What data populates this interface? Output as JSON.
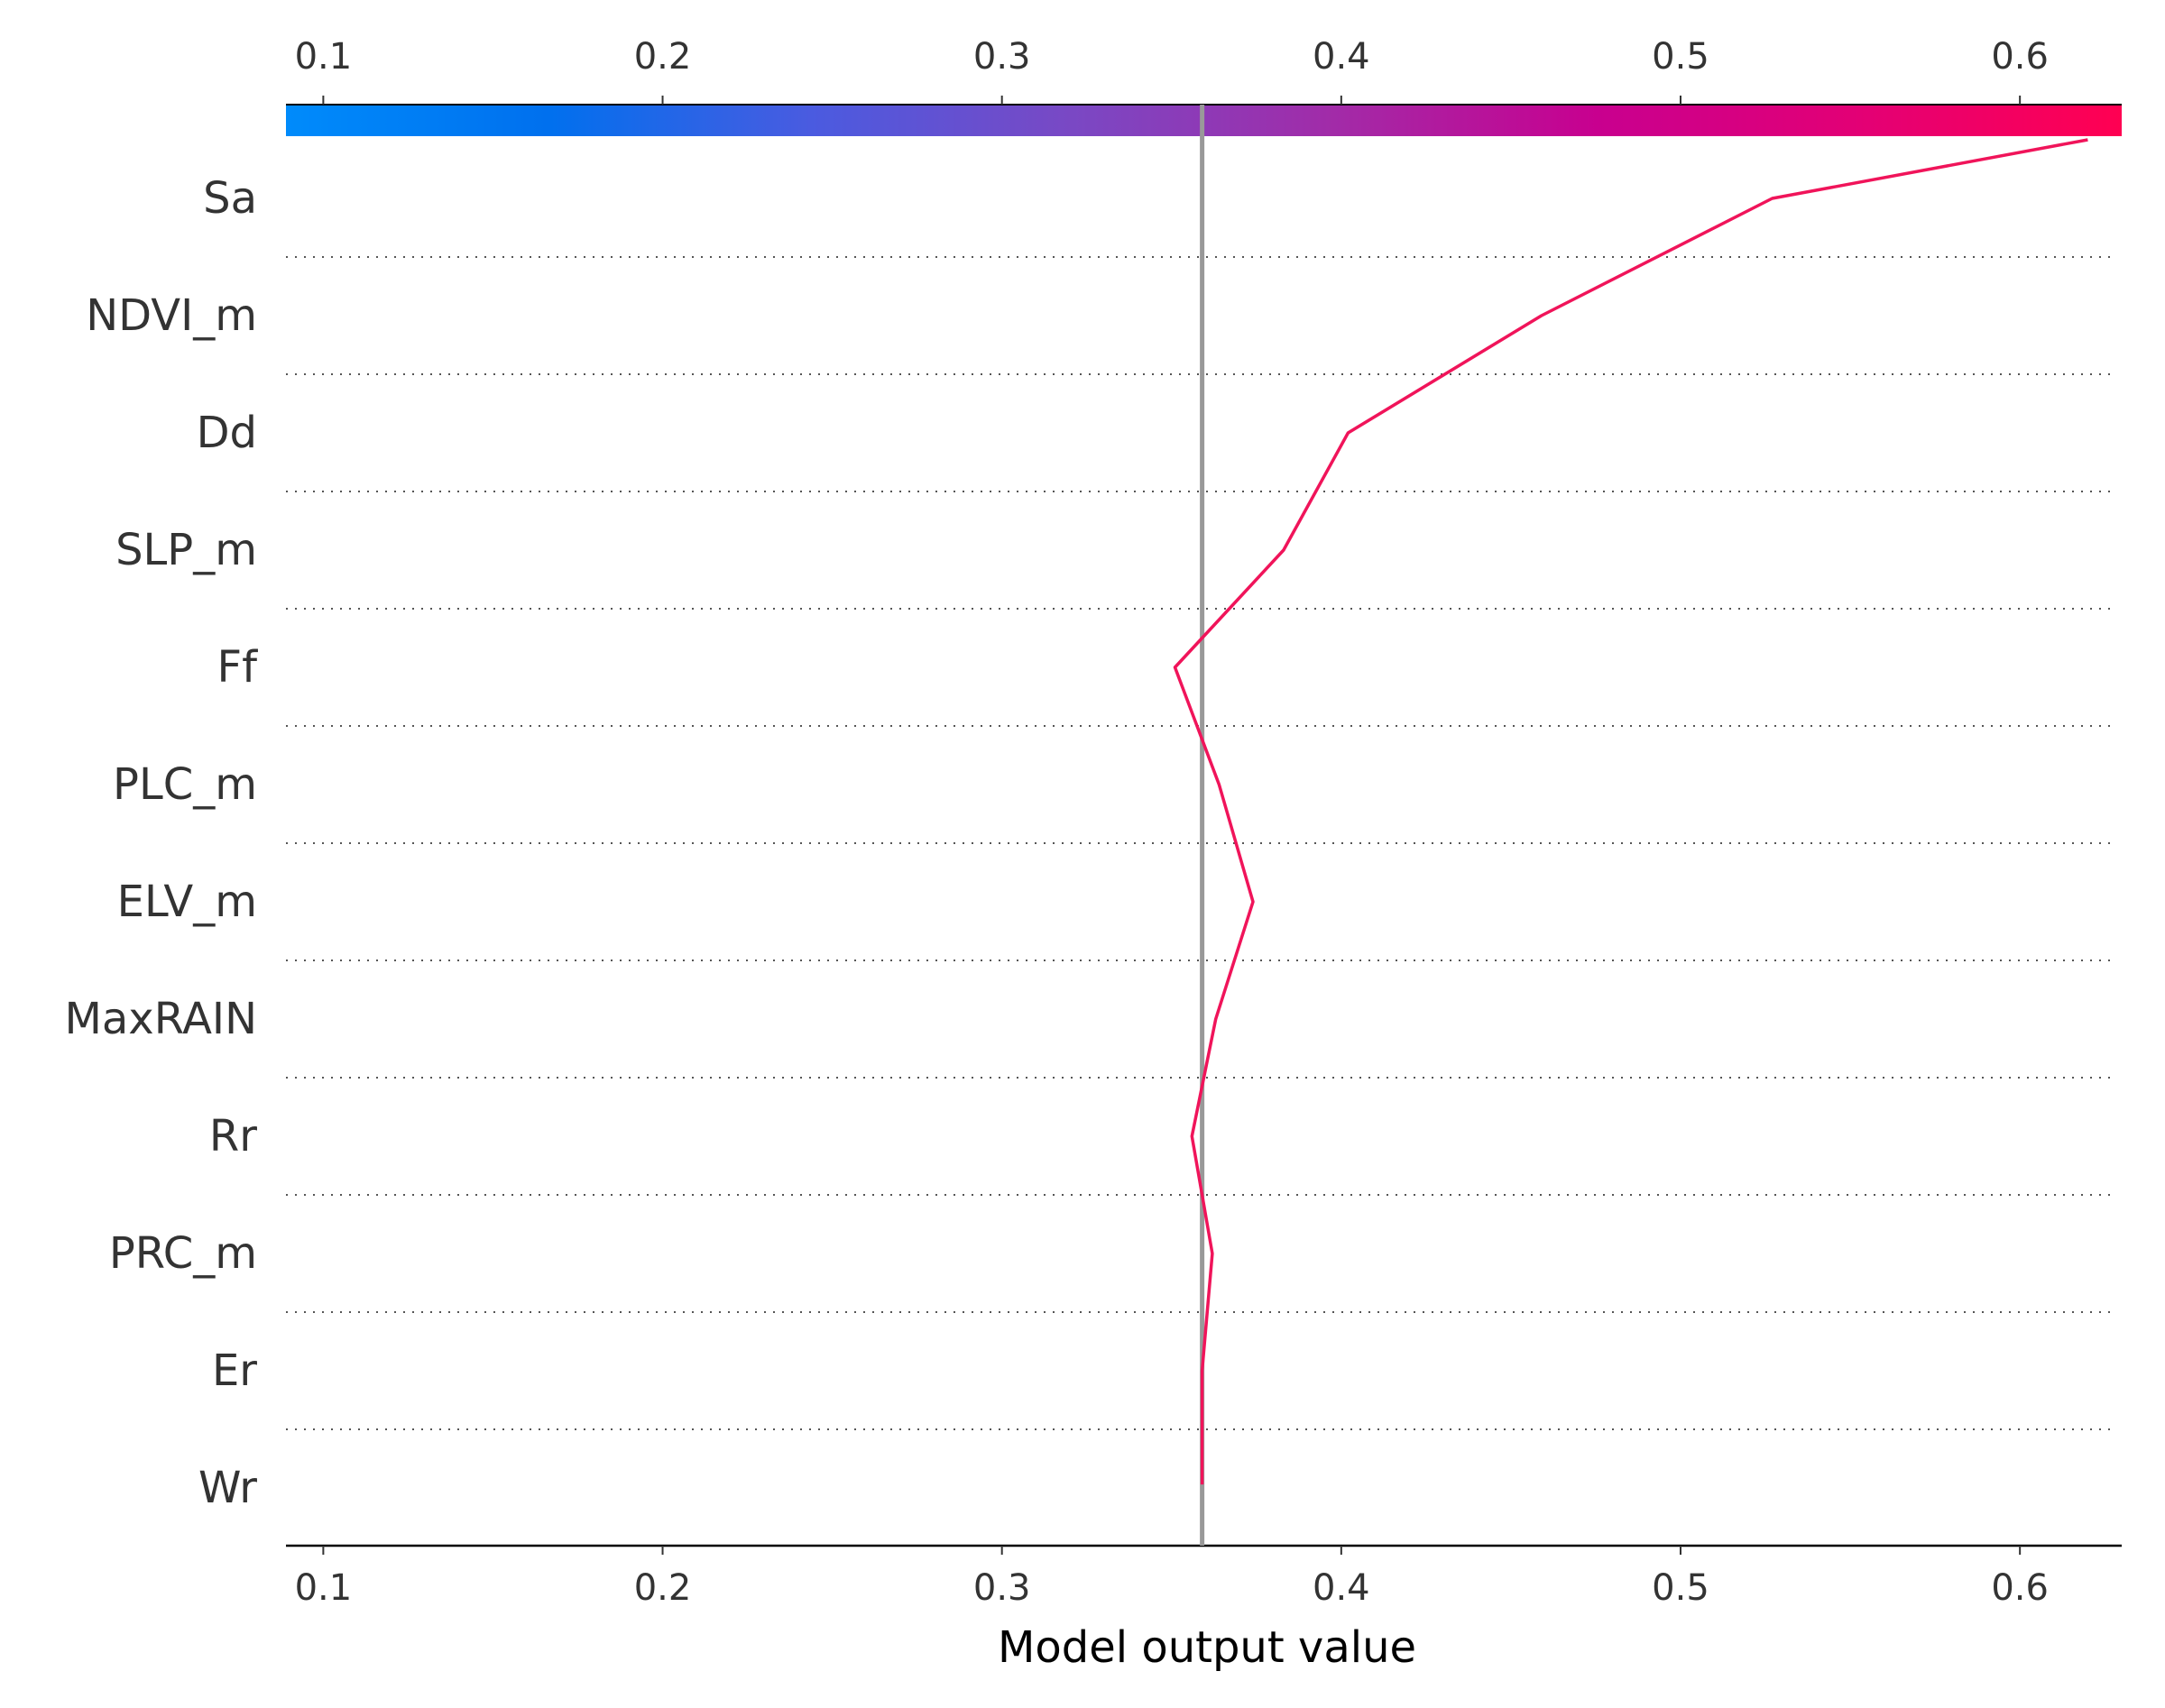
{
  "chart_data": {
    "type": "line",
    "subtype": "shap-decision-plot",
    "xlabel": "Model output value",
    "xlim": [
      0.089,
      0.63
    ],
    "x_ticks": [
      0.1,
      0.2,
      0.3,
      0.4,
      0.5,
      0.6
    ],
    "x_tick_labels": [
      "0.1",
      "0.2",
      "0.3",
      "0.4",
      "0.5",
      "0.6"
    ],
    "base_value": 0.359,
    "features": [
      "Sa",
      "NDVI_m",
      "Dd",
      "SLP_m",
      "Ff",
      "PLC_m",
      "ELV_m",
      "MaxRAIN",
      "Rr",
      "PRC_m",
      "Er",
      "Wr"
    ],
    "path_x": [
      0.62,
      0.527,
      0.459,
      0.402,
      0.383,
      0.351,
      0.364,
      0.374,
      0.363,
      0.356,
      0.362,
      0.359
    ],
    "path_y": [
      -0.5,
      0,
      1,
      2,
      3,
      4,
      5,
      6,
      7,
      8,
      9,
      10,
      10.97
    ],
    "path_x_full": [
      0.62,
      0.527,
      0.459,
      0.402,
      0.383,
      0.351,
      0.364,
      0.374,
      0.363,
      0.356,
      0.362,
      0.359,
      0.359
    ],
    "line_color": "#f0145a",
    "base_line_color": "#999999",
    "grid": "dotted horizontal separators",
    "colorbar": {
      "position": "top",
      "range": [
        0.089,
        0.63
      ],
      "colors": [
        "#008bfb",
        "#0070ee",
        "#4a5be0",
        "#7a48c4",
        "#a22ba8",
        "#c8008f",
        "#e30075",
        "#ff0052"
      ]
    }
  }
}
